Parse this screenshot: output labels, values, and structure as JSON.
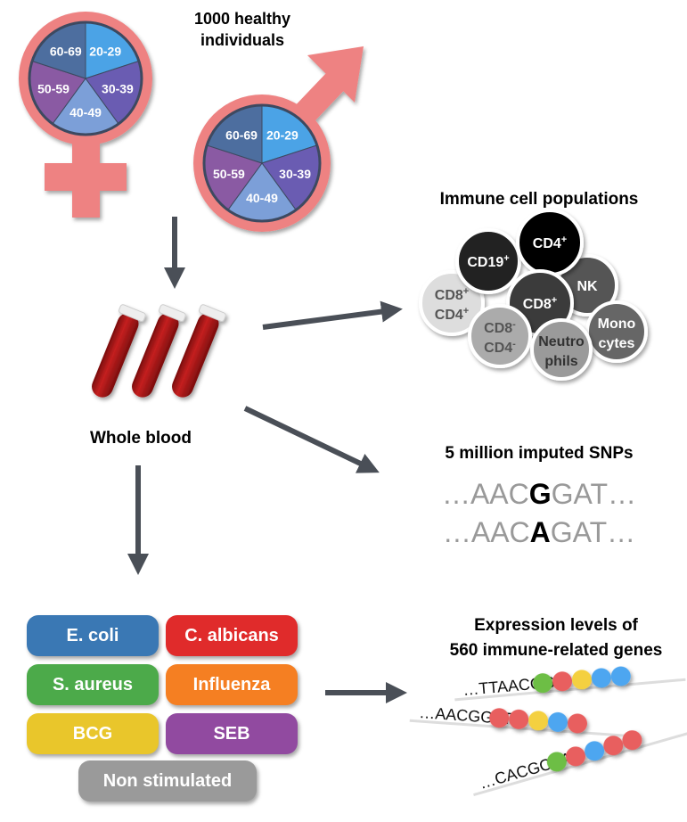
{
  "cohort": {
    "title_line1": "1000 healthy individuals",
    "title_line1a": "1000 healthy",
    "title_line2": "individuals",
    "age_groups": [
      "20-29",
      "30-39",
      "40-49",
      "50-59",
      "60-69"
    ],
    "age_colors": [
      "#4BA3E6",
      "#6A5BB2",
      "#7B9FD8",
      "#8A5AA3",
      "#4E6E9F"
    ],
    "symbol_color": "#EE8282"
  },
  "blood": {
    "label": "Whole blood"
  },
  "immune": {
    "title": "Immune cell populations",
    "cells": [
      {
        "line1": "CD19",
        "sup1": "+",
        "fill": "#222222",
        "text": "#ffffff"
      },
      {
        "line1": "CD4",
        "sup1": "+",
        "fill": "#000000",
        "text": "#ffffff"
      },
      {
        "line1": "NK",
        "fill": "#555555",
        "text": "#ffffff"
      },
      {
        "line1": "CD8",
        "sup1": "+",
        "fill": "#3a3a3a",
        "text": "#ffffff"
      },
      {
        "line1": "CD8",
        "sup1": "+",
        "line2": "CD4",
        "sup2": "+",
        "fill": "#dddddd",
        "text": "#555555"
      },
      {
        "line1": "CD8",
        "sup1": "-",
        "line2": "CD4",
        "sup2": "-",
        "fill": "#ababab",
        "text": "#555555"
      },
      {
        "line1": "Neutro",
        "line2": "phils",
        "fill": "#9a9a9a",
        "text": "#333333"
      },
      {
        "line1": "Mono",
        "line2": "cytes",
        "fill": "#666666",
        "text": "#ffffff"
      }
    ]
  },
  "snps": {
    "title": "5 million imputed SNPs",
    "seq1": {
      "prefix": "…AAC",
      "variant": "G",
      "suffix": "GAT…"
    },
    "seq2": {
      "prefix": "…AAC",
      "variant": "A",
      "suffix": "GAT…"
    }
  },
  "stimuli": [
    {
      "label": "E. coli",
      "color": "#3A78B4"
    },
    {
      "label": "C. albicans",
      "color": "#E02B2B"
    },
    {
      "label": "S. aureus",
      "color": "#4CAA4A"
    },
    {
      "label": "Influenza",
      "color": "#F57F22"
    },
    {
      "label": "BCG",
      "color": "#E9C62B"
    },
    {
      "label": "SEB",
      "color": "#914AA0"
    },
    {
      "label": "Non stimulated",
      "color": "#9A9A9A"
    }
  ],
  "expression": {
    "title_line1": "Expression levels of",
    "title_line2": "560 immune-related genes",
    "strands": [
      {
        "seq": "…TTAACGG",
        "beads": [
          "#6DBE45",
          "#E85E5E",
          "#F4D03F",
          "#4EA6F0",
          "#4EA6F0"
        ]
      },
      {
        "seq": "…AACGGAT",
        "beads": [
          "#E85E5E",
          "#E85E5E",
          "#F4D03F",
          "#4EA6F0",
          "#E85E5E"
        ]
      },
      {
        "seq": "…CACGCAA",
        "beads": [
          "#6DBE45",
          "#E85E5E",
          "#4EA6F0",
          "#E85E5E",
          "#E85E5E"
        ]
      }
    ]
  }
}
